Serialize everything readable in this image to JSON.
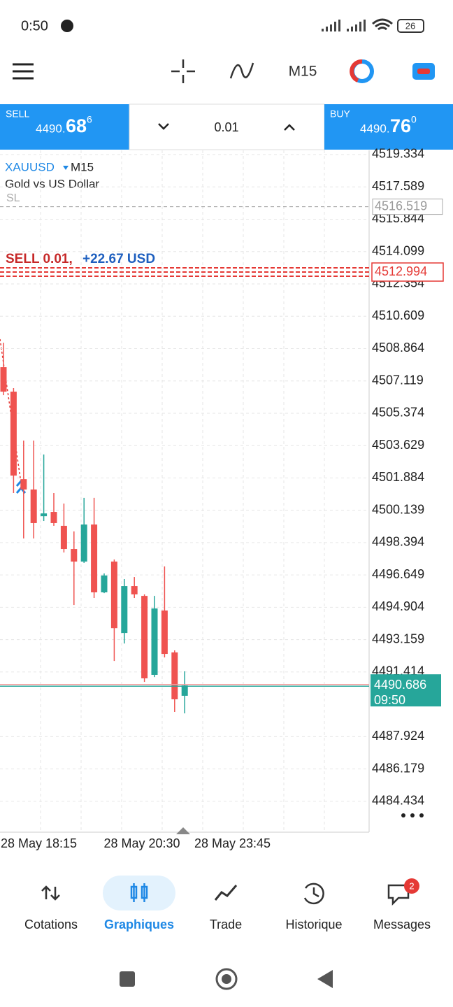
{
  "status_bar": {
    "time": "0:50",
    "battery": "26"
  },
  "toolbar": {
    "timeframe": "M15"
  },
  "trade_panel": {
    "sell": {
      "label": "SELL",
      "price_main": "4490.",
      "price_big": "68",
      "price_sup": "6"
    },
    "volume": "0.01",
    "buy": {
      "label": "BUY",
      "price_main": "4490.",
      "price_big": "76",
      "price_sup": "0"
    }
  },
  "chart_header": {
    "symbol": "XAUUSD",
    "timeframe": "M15",
    "description": "Gold vs US Dollar",
    "sl_label": "SL"
  },
  "chart_data": {
    "type": "candlestick",
    "open": [
      4507.86,
      4506.54,
      4501.82,
      4501.26,
      4499.82,
      4500.05,
      4499.3,
      4498.05,
      4497.37,
      4499.37,
      4495.71,
      4497.37,
      4493.52,
      4496.05,
      4495.52,
      4491.26,
      4494.73,
      4492.47,
      4490.13
    ],
    "high": [
      4509.18,
      4506.73,
      4503.9,
      4503.9,
      4503.15,
      4501.07,
      4500.5,
      4499.0,
      4500.81,
      4500.81,
      4496.73,
      4497.48,
      4496.43,
      4496.54,
      4495.6,
      4495.52,
      4497.11,
      4492.58,
      4491.45
    ],
    "low": [
      4506.35,
      4501.07,
      4498.62,
      4498.62,
      4499.56,
      4499.3,
      4497.86,
      4495.03,
      4497.3,
      4495.41,
      4495.67,
      4492.01,
      4492.95,
      4495.41,
      4490.88,
      4491.14,
      4492.2,
      4489.26,
      4489.18
    ],
    "close": [
      4506.54,
      4502.01,
      4501.26,
      4499.45,
      4499.97,
      4499.45,
      4498.05,
      4497.37,
      4499.37,
      4495.71,
      4496.62,
      4493.78,
      4496.05,
      4495.6,
      4491.07,
      4494.84,
      4492.39,
      4489.94,
      4490.69
    ],
    "up_color": "#26a69a",
    "down_color": "#ef5350",
    "ylim": [
      4482.77,
      4519.56
    ],
    "yticks": [
      4519.334,
      4517.589,
      4515.844,
      4514.099,
      4512.354,
      4510.609,
      4508.864,
      4507.119,
      4505.374,
      4503.629,
      4501.884,
      4500.139,
      4498.394,
      4496.649,
      4494.904,
      4493.159,
      4491.414,
      4487.924,
      4486.179,
      4484.434
    ],
    "grid": true,
    "x_labels": [
      "28 May 18:15",
      "28 May 20:30",
      "28 May 23:45"
    ],
    "sl_price": 4516.519,
    "order_price": 4512.994,
    "order_label": {
      "side": "SELL 0.01,",
      "profit": "+22.67 USD"
    },
    "current_price": 4490.686,
    "current_time": "09:50"
  },
  "nav": {
    "items": [
      "Cotations",
      "Graphiques",
      "Trade",
      "Historique",
      "Messages"
    ],
    "badge": "2"
  }
}
